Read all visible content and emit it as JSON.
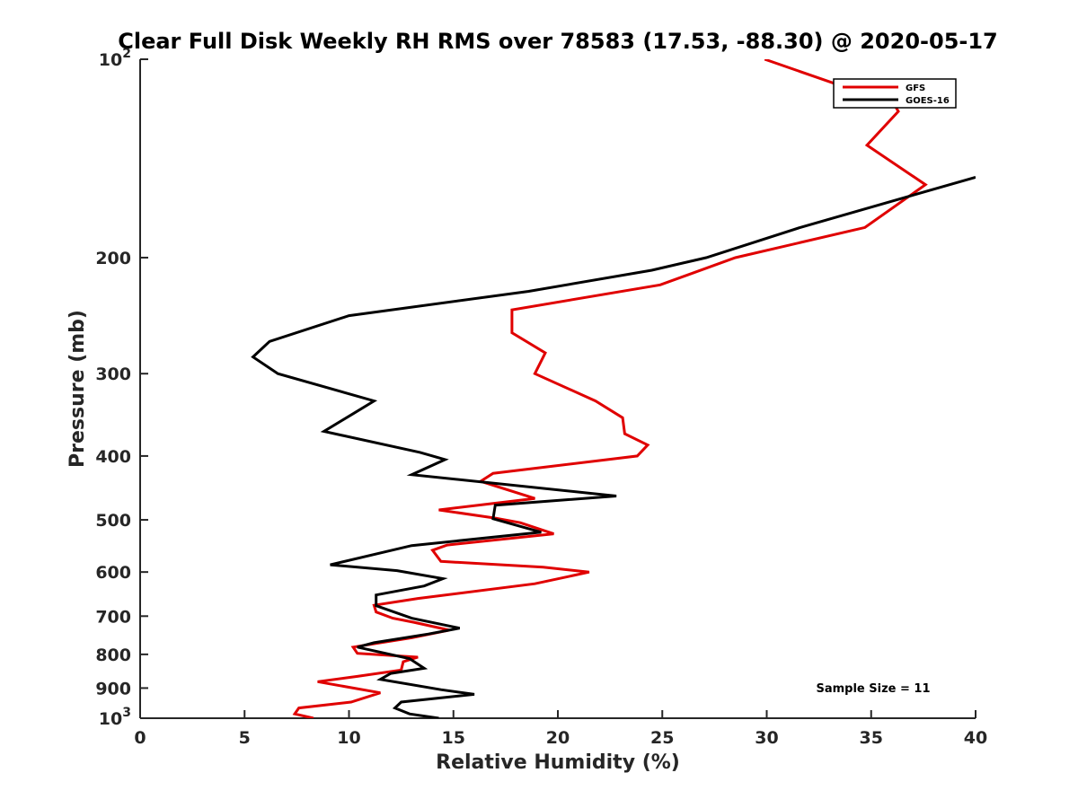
{
  "chart_data": {
    "type": "line",
    "title": "Clear Full Disk Weekly RH RMS over 78583 (17.53, -88.30) @ 2020-05-17",
    "xlabel": "Relative Humidity (%)",
    "ylabel": "Pressure (mb)",
    "xlim": [
      0,
      40
    ],
    "ylim": [
      100,
      1000
    ],
    "yscale": "log",
    "y_reversed": true,
    "grid": false,
    "legend_position": "top-right",
    "x_ticks": [
      0,
      5,
      10,
      15,
      20,
      25,
      30,
      35,
      40
    ],
    "y_ticks": [
      {
        "value": 100,
        "base": "10",
        "exp": "2"
      },
      {
        "value": 200,
        "label": "200"
      },
      {
        "value": 300,
        "label": "300"
      },
      {
        "value": 400,
        "label": "400"
      },
      {
        "value": 500,
        "label": "500"
      },
      {
        "value": 600,
        "label": "600"
      },
      {
        "value": 700,
        "label": "700"
      },
      {
        "value": 800,
        "label": "800"
      },
      {
        "value": 900,
        "label": "900"
      },
      {
        "value": 1000,
        "base": "10",
        "exp": "3"
      }
    ],
    "annotation": "Sample Size = 11",
    "series": [
      {
        "name": "GFS",
        "color": "#e00000",
        "points": [
          [
            29.9,
            100
          ],
          [
            36.1,
            117
          ],
          [
            36.3,
            120
          ],
          [
            34.8,
            135
          ],
          [
            37.6,
            155
          ],
          [
            34.7,
            180
          ],
          [
            28.5,
            200
          ],
          [
            24.9,
            220
          ],
          [
            17.8,
            240
          ],
          [
            17.8,
            260
          ],
          [
            19.4,
            279
          ],
          [
            18.9,
            300
          ],
          [
            21.8,
            330
          ],
          [
            23.1,
            350
          ],
          [
            23.2,
            370
          ],
          [
            24.3,
            385
          ],
          [
            23.8,
            400
          ],
          [
            16.9,
            425
          ],
          [
            16.3,
            437
          ],
          [
            18.9,
            464
          ],
          [
            14.3,
            483
          ],
          [
            17.0,
            497
          ],
          [
            18.2,
            505
          ],
          [
            19.8,
            525
          ],
          [
            14.7,
            546
          ],
          [
            14.0,
            556
          ],
          [
            14.4,
            578
          ],
          [
            19.3,
            590
          ],
          [
            21.5,
            600
          ],
          [
            18.9,
            625
          ],
          [
            13.3,
            658
          ],
          [
            11.2,
            674
          ],
          [
            11.3,
            690
          ],
          [
            12.1,
            705
          ],
          [
            13.1,
            715
          ],
          [
            14.8,
            735
          ],
          [
            13.0,
            755
          ],
          [
            10.2,
            780
          ],
          [
            10.4,
            797
          ],
          [
            13.3,
            808
          ],
          [
            12.6,
            821
          ],
          [
            12.5,
            845
          ],
          [
            10.4,
            864
          ],
          [
            8.5,
            880
          ],
          [
            11.5,
            915
          ],
          [
            10.1,
            945
          ],
          [
            7.6,
            965
          ],
          [
            7.4,
            985
          ],
          [
            8.3,
            1000
          ]
        ]
      },
      {
        "name": "GOES-16",
        "color": "#000000",
        "points": [
          [
            40.0,
            151
          ],
          [
            31.6,
            180
          ],
          [
            27.1,
            200
          ],
          [
            24.5,
            209
          ],
          [
            18.6,
            225
          ],
          [
            10.0,
            245
          ],
          [
            6.2,
            268
          ],
          [
            5.4,
            283
          ],
          [
            6.6,
            300
          ],
          [
            11.2,
            330
          ],
          [
            10.2,
            345
          ],
          [
            8.8,
            367
          ],
          [
            13.4,
            395
          ],
          [
            14.6,
            405
          ],
          [
            13.0,
            427
          ],
          [
            22.8,
            460
          ],
          [
            17.0,
            475
          ],
          [
            16.9,
            498
          ],
          [
            19.2,
            522
          ],
          [
            13.0,
            547
          ],
          [
            9.1,
            585
          ],
          [
            12.3,
            597
          ],
          [
            14.5,
            614
          ],
          [
            13.6,
            630
          ],
          [
            11.3,
            650
          ],
          [
            11.3,
            675
          ],
          [
            13.0,
            705
          ],
          [
            15.3,
            730
          ],
          [
            13.8,
            745
          ],
          [
            11.2,
            768
          ],
          [
            10.4,
            780
          ],
          [
            12.9,
            812
          ],
          [
            13.6,
            840
          ],
          [
            12.0,
            855
          ],
          [
            11.5,
            873
          ],
          [
            14.4,
            905
          ],
          [
            16.0,
            920
          ],
          [
            12.5,
            945
          ],
          [
            12.2,
            965
          ],
          [
            12.9,
            985
          ],
          [
            14.3,
            1000
          ]
        ]
      }
    ]
  }
}
